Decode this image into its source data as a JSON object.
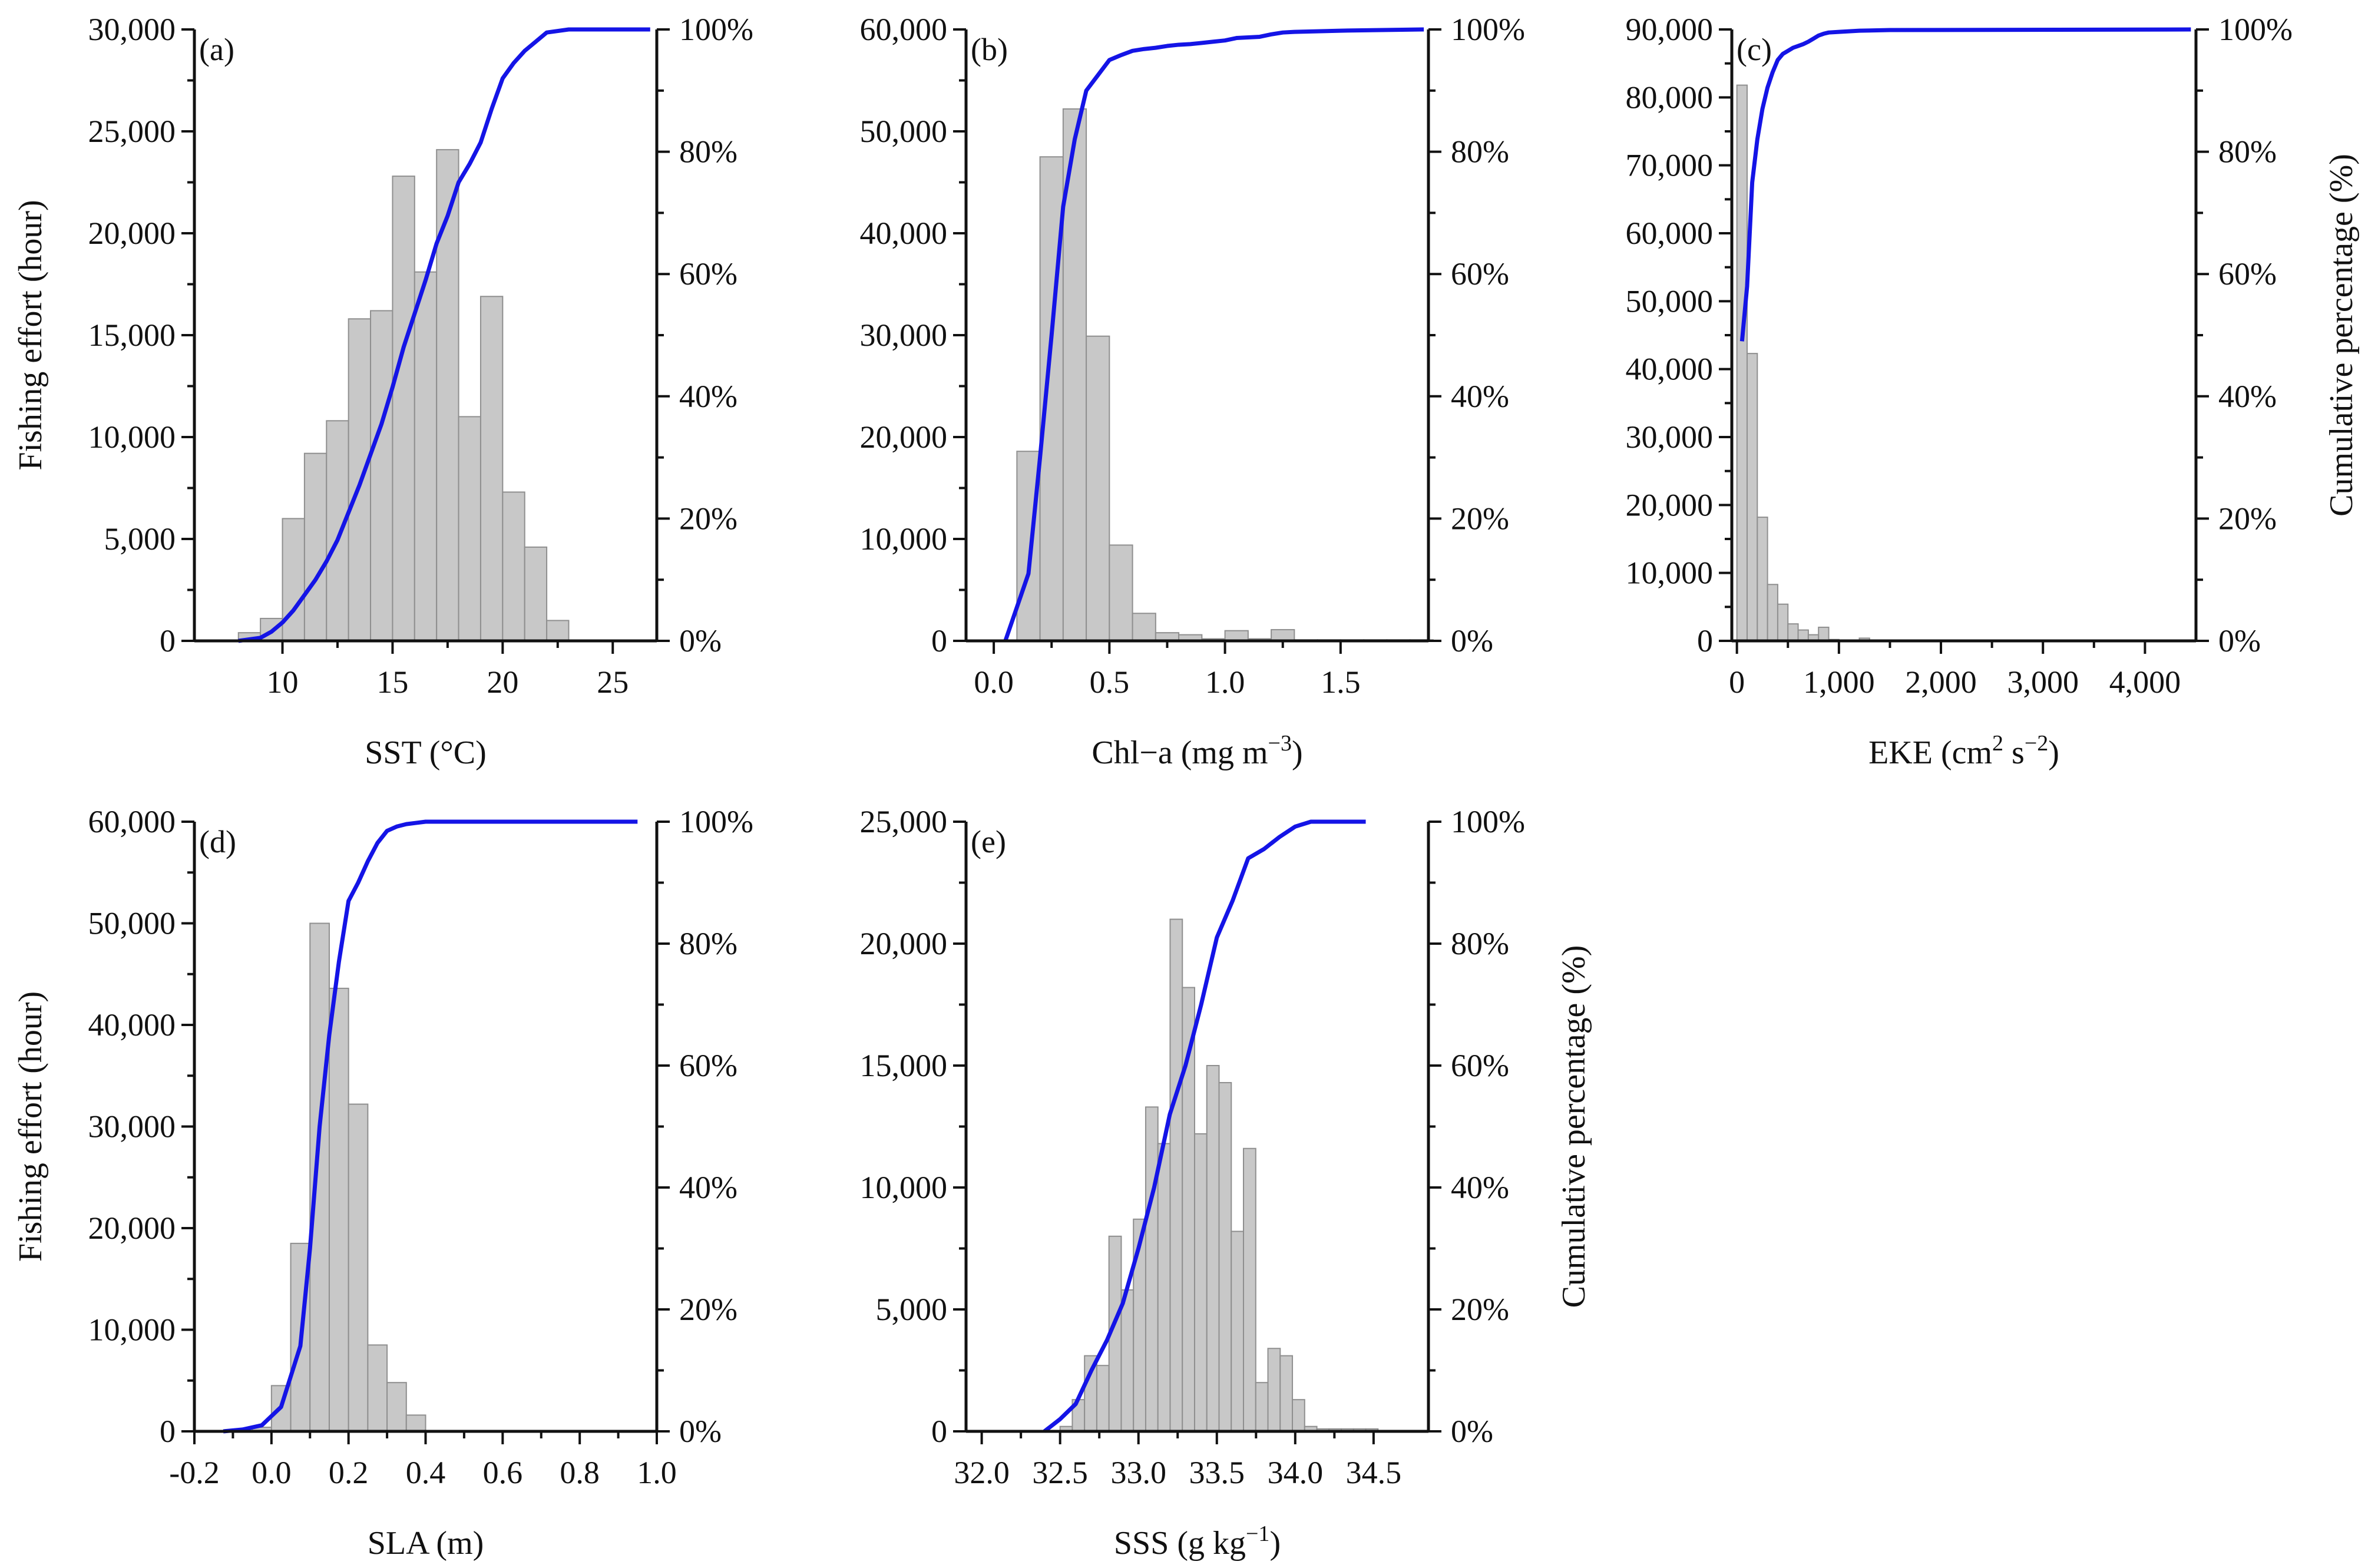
{
  "figure": {
    "colors": {
      "bar_fill": "#c8c8c8",
      "bar_stroke": "#8f8f8f",
      "curve": "#1414e6",
      "axis": "#111111"
    },
    "y2_tick_labels": [
      "0%",
      "20%",
      "40%",
      "60%",
      "80%",
      "100%"
    ]
  },
  "chart_data": [
    {
      "id": "a",
      "type": "bar",
      "panel_label": "(a)",
      "title": "",
      "xlabel": "SST (°C)",
      "ylabel": "Fishing effort (hour)",
      "y2label": "",
      "xlim": [
        6,
        27
      ],
      "ylim": [
        0,
        30000
      ],
      "y2lim": [
        0,
        100
      ],
      "grid": false,
      "x_ticks": [
        10,
        15,
        20,
        25
      ],
      "x_tick_labels": [
        "10",
        "15",
        "20",
        "25"
      ],
      "y_ticks": [
        0,
        5000,
        10000,
        15000,
        20000,
        25000,
        30000
      ],
      "y_tick_labels": [
        "0",
        "5,000",
        "10,000",
        "15,000",
        "20,000",
        "25,000",
        "30,000"
      ],
      "bin_width": 1,
      "bins": [
        8,
        9,
        10,
        11,
        12,
        13,
        14,
        15,
        16,
        17,
        18,
        19,
        20,
        21,
        22
      ],
      "values": [
        400,
        1100,
        6000,
        9200,
        10800,
        15800,
        16200,
        22800,
        18100,
        24100,
        11000,
        16900,
        7300,
        4600,
        1000
      ],
      "cumulative": {
        "name": "Cumulative percentage",
        "x": [
          8,
          9,
          9.5,
          10,
          10.5,
          11,
          11.5,
          12,
          12.5,
          13,
          13.5,
          14,
          14.5,
          15,
          15.5,
          16,
          16.5,
          17,
          17.5,
          18,
          18.5,
          19,
          19.5,
          20,
          20.5,
          21,
          21.5,
          22,
          23,
          26.7
        ],
        "values": [
          0,
          0.5,
          1.5,
          3,
          5,
          7.5,
          10,
          13,
          16.5,
          21,
          25.5,
          30.5,
          35.5,
          41.5,
          48,
          53.5,
          59,
          65,
          69.5,
          75,
          78,
          81.5,
          87,
          92,
          94.5,
          96.5,
          98,
          99.5,
          100,
          100
        ]
      }
    },
    {
      "id": "b",
      "type": "bar",
      "panel_label": "(b)",
      "title": "",
      "xlabel": "Chl−a (mg m",
      "xlabel_sup": "−3",
      "xlabel_end": ")",
      "ylabel": "",
      "y2label": "",
      "xlim": [
        -0.12,
        1.88
      ],
      "ylim": [
        0,
        60000
      ],
      "y2lim": [
        0,
        100
      ],
      "grid": false,
      "x_ticks": [
        0,
        0.5,
        1,
        1.5
      ],
      "x_tick_labels": [
        "0.0",
        "0.5",
        "1.0",
        "1.5"
      ],
      "y_ticks": [
        0,
        10000,
        20000,
        30000,
        40000,
        50000,
        60000
      ],
      "y_tick_labels": [
        "0",
        "10,000",
        "20,000",
        "30,000",
        "40,000",
        "50,000",
        "60,000"
      ],
      "bin_width": 0.1,
      "bins": [
        0.1,
        0.2,
        0.3,
        0.4,
        0.5,
        0.6,
        0.7,
        0.8,
        0.9,
        1.0,
        1.1,
        1.2,
        1.3,
        1.4,
        1.5,
        1.6,
        1.7,
        1.8
      ],
      "values": [
        18600,
        47500,
        52200,
        29900,
        9400,
        2700,
        800,
        600,
        200,
        1000,
        200,
        1100,
        100,
        100,
        100,
        100,
        100,
        100
      ],
      "cumulative": {
        "name": "Cumulative percentage",
        "x": [
          0.05,
          0.15,
          0.2,
          0.25,
          0.3,
          0.35,
          0.4,
          0.45,
          0.5,
          0.55,
          0.6,
          0.65,
          0.7,
          0.75,
          0.8,
          0.85,
          0.9,
          0.95,
          1.0,
          1.05,
          1.1,
          1.15,
          1.2,
          1.25,
          1.3,
          1.5,
          1.86
        ],
        "values": [
          0,
          11,
          30,
          50,
          71,
          82,
          90,
          92.5,
          95,
          95.8,
          96.5,
          96.8,
          97,
          97.3,
          97.5,
          97.6,
          97.8,
          98,
          98.2,
          98.6,
          98.7,
          98.8,
          99.2,
          99.5,
          99.6,
          99.8,
          100
        ]
      }
    },
    {
      "id": "c",
      "type": "bar",
      "panel_label": "(c)",
      "title": "",
      "xlabel": "EKE (cm",
      "xlabel_sup": "2",
      "xlabel_mid": " s",
      "xlabel_sup2": "−2",
      "xlabel_end": ")",
      "ylabel": "",
      "y2label": "Cumulative percentage (%)",
      "xlim": [
        -50,
        4500
      ],
      "ylim": [
        0,
        90000
      ],
      "y2lim": [
        0,
        100
      ],
      "grid": false,
      "x_ticks": [
        0,
        1000,
        2000,
        3000,
        4000
      ],
      "x_tick_labels": [
        "0",
        "1,000",
        "2,000",
        "3,000",
        "4,000"
      ],
      "y_ticks": [
        0,
        10000,
        20000,
        30000,
        40000,
        50000,
        60000,
        70000,
        80000,
        90000
      ],
      "y_tick_labels": [
        "0",
        "10,000",
        "20,000",
        "30,000",
        "40,000",
        "50,000",
        "60,000",
        "70,000",
        "80,000",
        "90,000"
      ],
      "bin_width": 100,
      "bins": [
        0,
        100,
        200,
        300,
        400,
        500,
        600,
        700,
        800,
        900,
        1000,
        1100,
        1200
      ],
      "values": [
        81800,
        42300,
        18200,
        8300,
        5400,
        2500,
        1600,
        900,
        2000,
        200,
        100,
        100,
        400
      ],
      "cumulative": {
        "name": "Cumulative percentage",
        "x": [
          50,
          100,
          150,
          200,
          250,
          300,
          350,
          400,
          450,
          500,
          550,
          600,
          650,
          700,
          750,
          800,
          850,
          900,
          1000,
          1200,
          1500,
          4450
        ],
        "values": [
          49,
          58,
          75,
          82,
          87,
          90.5,
          93,
          95,
          96,
          96.5,
          97,
          97.3,
          97.6,
          98,
          98.5,
          99,
          99.3,
          99.5,
          99.6,
          99.8,
          99.9,
          100
        ]
      }
    },
    {
      "id": "d",
      "type": "bar",
      "panel_label": "(d)",
      "title": "",
      "xlabel": "SLA (m)",
      "ylabel": "Fishing effort (hour)",
      "y2label": "",
      "xlim": [
        -0.2,
        1.0
      ],
      "ylim": [
        0,
        60000
      ],
      "y2lim": [
        0,
        100
      ],
      "grid": false,
      "x_ticks": [
        -0.2,
        0,
        0.2,
        0.4,
        0.6,
        0.8,
        1.0
      ],
      "x_tick_labels": [
        "-0.2",
        "0.0",
        "0.2",
        "0.4",
        "0.6",
        "0.8",
        "1.0"
      ],
      "y_ticks": [
        0,
        10000,
        20000,
        30000,
        40000,
        50000,
        60000
      ],
      "y_tick_labels": [
        "0",
        "10,000",
        "20,000",
        "30,000",
        "40,000",
        "50,000",
        "60,000"
      ],
      "bin_width": 0.05,
      "bins": [
        -0.05,
        0.0,
        0.05,
        0.1,
        0.15,
        0.2,
        0.25,
        0.3,
        0.35
      ],
      "values": [
        400,
        4500,
        18500,
        50000,
        43600,
        32200,
        8500,
        4800,
        1600
      ],
      "cumulative": {
        "name": "Cumulative percentage",
        "x": [
          -0.125,
          -0.075,
          -0.025,
          0.025,
          0.075,
          0.1,
          0.125,
          0.15,
          0.175,
          0.2,
          0.225,
          0.25,
          0.275,
          0.3,
          0.325,
          0.35,
          0.375,
          0.4,
          0.5,
          0.7,
          0.95
        ],
        "values": [
          0,
          0.3,
          1,
          4,
          14,
          30,
          50,
          65,
          77,
          87,
          90,
          93.5,
          96.5,
          98.5,
          99.2,
          99.6,
          99.8,
          100,
          100,
          100,
          100
        ]
      }
    },
    {
      "id": "e",
      "type": "bar",
      "panel_label": "(e)",
      "title": "",
      "xlabel": "SSS (g kg",
      "xlabel_sup": "−1",
      "xlabel_end": ")",
      "ylabel": "",
      "y2label": "Cumulative percentage (%)",
      "xlim": [
        31.9,
        34.85
      ],
      "ylim": [
        0,
        25000
      ],
      "y2lim": [
        0,
        100
      ],
      "grid": false,
      "x_ticks": [
        32.0,
        32.5,
        33.0,
        33.5,
        34.0,
        34.5
      ],
      "x_tick_labels": [
        "32.0",
        "32.5",
        "33.0",
        "33.5",
        "34.0",
        "34.5"
      ],
      "y_ticks": [
        0,
        5000,
        10000,
        15000,
        20000,
        25000
      ],
      "y_tick_labels": [
        "0",
        "5,000",
        "10,000",
        "15,000",
        "20,000",
        "25,000"
      ],
      "bin_width": 0.0781,
      "bins": [
        32.5,
        32.578,
        32.656,
        32.734,
        32.812,
        32.89,
        32.968,
        33.046,
        33.124,
        33.202,
        33.28,
        33.358,
        33.436,
        33.514,
        33.592,
        33.67,
        33.748,
        33.826,
        33.904,
        33.982,
        34.06,
        34.138,
        34.216,
        34.294,
        34.372,
        34.45
      ],
      "values": [
        200,
        1300,
        3100,
        2700,
        8000,
        5800,
        8700,
        13300,
        11800,
        21000,
        18200,
        12200,
        15000,
        14300,
        8200,
        11600,
        2000,
        3400,
        3100,
        1300,
        200,
        100,
        100,
        100,
        100,
        100
      ],
      "cumulative": {
        "name": "Cumulative percentage",
        "x": [
          32.4,
          32.5,
          32.6,
          32.7,
          32.8,
          32.9,
          33.0,
          33.1,
          33.2,
          33.3,
          33.4,
          33.5,
          33.6,
          33.7,
          33.8,
          33.9,
          34.0,
          34.1,
          34.2,
          34.3,
          34.45
        ],
        "values": [
          0,
          2,
          4.5,
          10,
          15,
          21,
          30,
          40,
          52,
          60,
          70,
          81,
          87,
          94,
          95.5,
          97.5,
          99.2,
          100,
          100,
          100,
          100
        ]
      }
    }
  ]
}
